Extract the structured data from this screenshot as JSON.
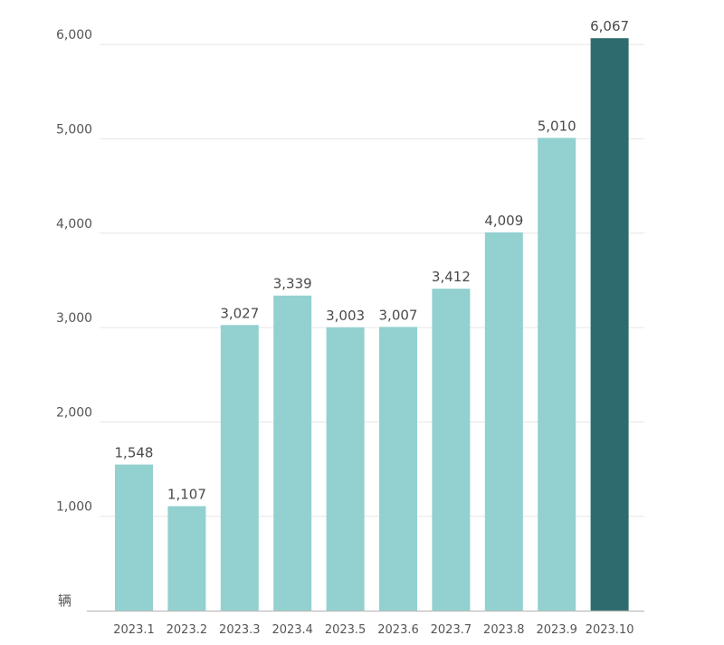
{
  "chart_data": {
    "type": "bar",
    "categories": [
      "2023.1",
      "2023.2",
      "2023.3",
      "2023.4",
      "2023.5",
      "2023.6",
      "2023.7",
      "2023.8",
      "2023.9",
      "2023.10"
    ],
    "values": [
      1548,
      1107,
      3027,
      3339,
      3003,
      3007,
      3412,
      4009,
      5010,
      6067
    ],
    "value_labels": [
      "1,548",
      "1,107",
      "3,027",
      "3,339",
      "3,003",
      "3,007",
      "3,412",
      "4,009",
      "5,010",
      "6,067"
    ],
    "title": "",
    "xlabel": "",
    "ylabel": "",
    "unit_label": "辆",
    "ylim": [
      0,
      6000
    ],
    "yticks": [
      1000,
      2000,
      3000,
      4000,
      5000,
      6000
    ],
    "ytick_labels": [
      "1,000",
      "2,000",
      "3,000",
      "4,000",
      "5,000",
      "6,000"
    ],
    "grid": true,
    "legend": "none",
    "colors": {
      "bar": "#93d0d0",
      "highlight_bar": "#2e6b6e",
      "grid": "#e6e6e6",
      "axis": "#bdbdbd"
    },
    "highlight_index": 9
  }
}
